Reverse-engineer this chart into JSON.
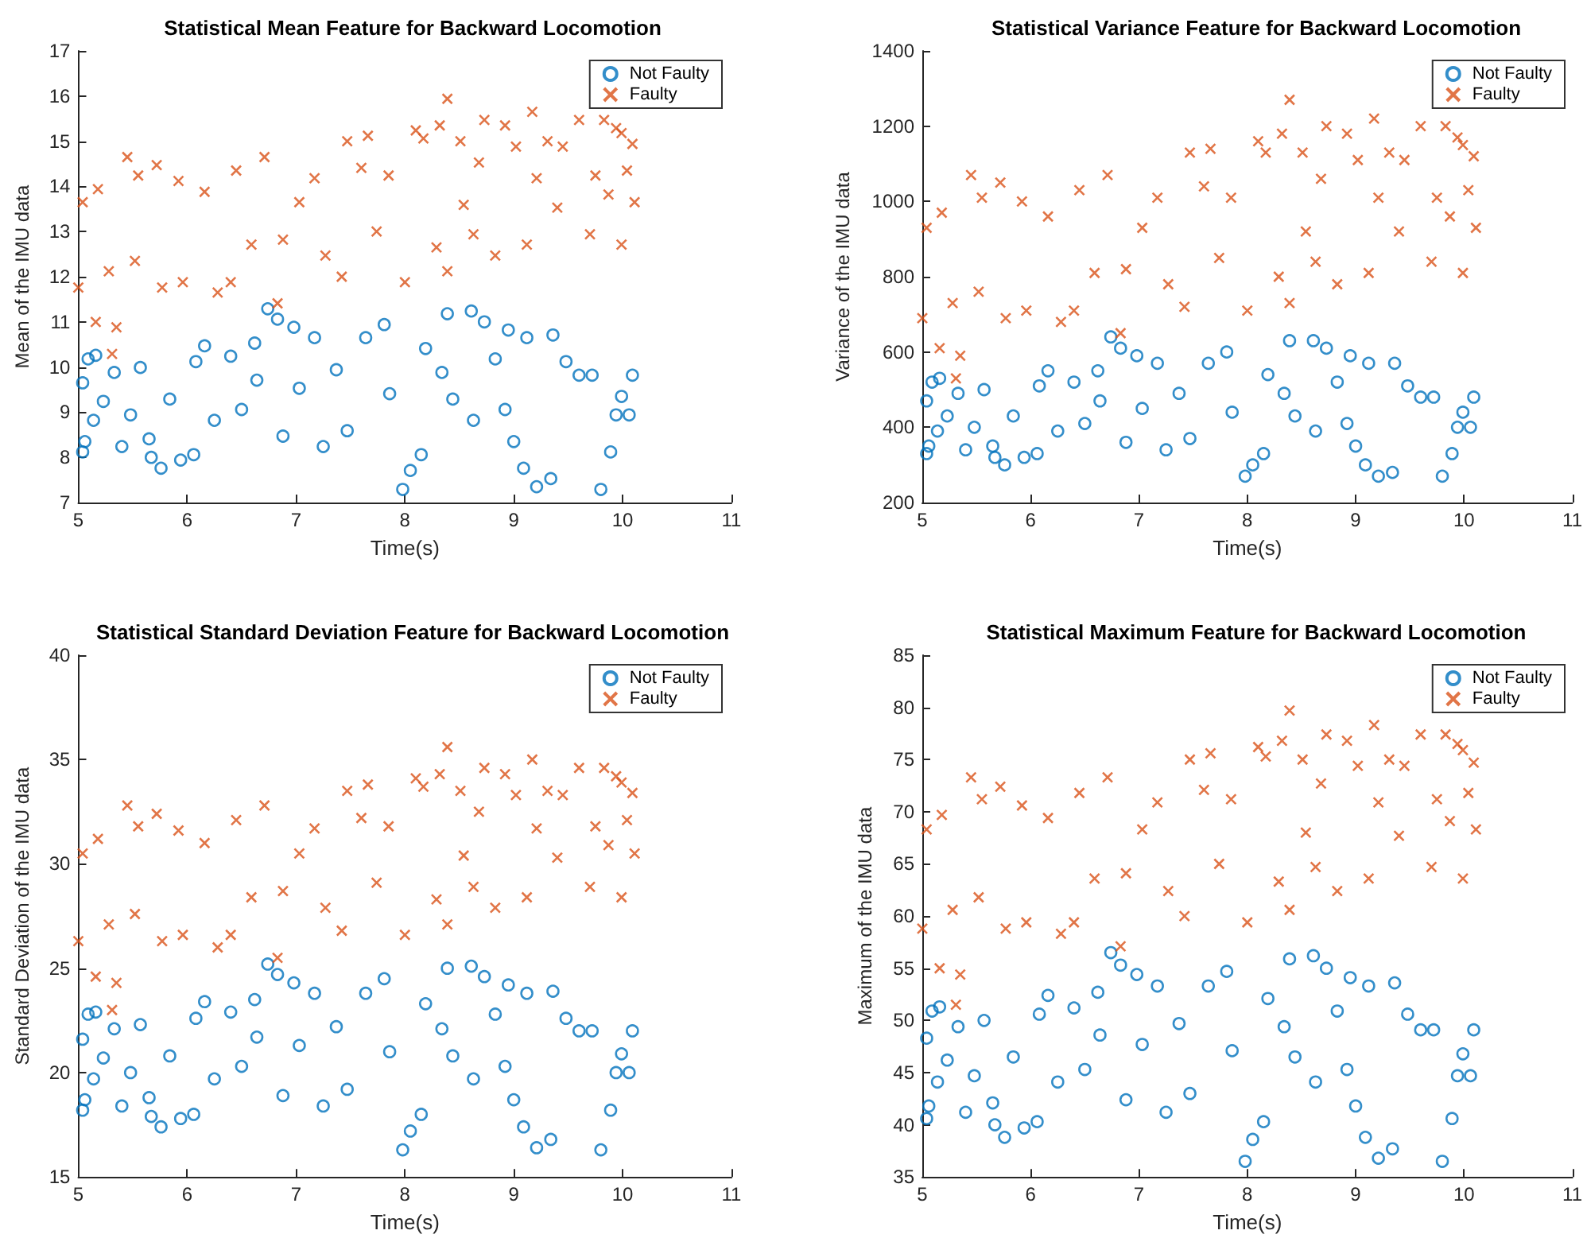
{
  "chart_data": [
    {
      "type": "scatter",
      "title": "Statistical Mean Feature for Backward Locomotion",
      "xlabel": "Time(s)",
      "ylabel": "Mean of the IMU data",
      "xlim": [
        5,
        11
      ],
      "xticks": [
        5,
        6,
        7,
        8,
        9,
        10,
        11
      ],
      "ylim": [
        7,
        17
      ],
      "yticks": [
        7,
        8,
        9,
        10,
        11,
        12,
        13,
        14,
        15,
        16,
        17
      ],
      "grid": false,
      "legend": "top right",
      "series": [
        {
          "name": "Not Faulty",
          "color": "#0072bd",
          "marker": "circle",
          "x": [
            5.04,
            5.06,
            5.09,
            5.16,
            5.04,
            5.14,
            5.23,
            5.33,
            5.4,
            5.48,
            5.57,
            5.65,
            5.67,
            5.76,
            5.84,
            5.94,
            6.06,
            6.08,
            6.16,
            6.25,
            6.4,
            6.5,
            6.62,
            6.64,
            6.74,
            6.83,
            6.88,
            6.98,
            7.03,
            7.17,
            7.25,
            7.37,
            7.47,
            7.64,
            7.81,
            7.86,
            7.98,
            8.05,
            8.15,
            8.19,
            8.34,
            8.39,
            8.44,
            8.61,
            8.73,
            8.83,
            8.95,
            9.0,
            9.09,
            9.12,
            9.21,
            9.34,
            9.36,
            9.48,
            9.6,
            9.72,
            9.8,
            9.89,
            9.94,
            10.06,
            10.09,
            9.99,
            8.63,
            8.92
          ],
          "values": [
            8.12,
            8.35,
            10.18,
            10.26,
            9.65,
            8.82,
            9.24,
            9.88,
            8.24,
            8.94,
            9.99,
            8.41,
            8.0,
            7.76,
            9.29,
            7.94,
            8.06,
            10.12,
            10.47,
            8.82,
            10.24,
            9.06,
            10.53,
            9.71,
            11.29,
            11.06,
            8.47,
            10.88,
            9.53,
            10.65,
            8.24,
            9.94,
            8.59,
            10.65,
            10.94,
            9.41,
            7.29,
            7.71,
            8.06,
            10.41,
            9.88,
            11.18,
            9.29,
            11.24,
            11.0,
            10.18,
            10.82,
            8.35,
            7.76,
            10.65,
            7.35,
            7.53,
            10.71,
            10.12,
            9.82,
            9.82,
            7.29,
            8.12,
            8.94,
            8.94,
            9.82,
            9.35,
            8.82,
            9.06
          ]
        },
        {
          "name": "Faulty",
          "color": "#d95319",
          "marker": "cross",
          "x": [
            5.0,
            5.04,
            5.18,
            5.16,
            5.31,
            5.35,
            5.28,
            5.45,
            5.52,
            5.55,
            5.72,
            5.77,
            5.92,
            5.96,
            6.16,
            6.28,
            6.4,
            6.45,
            6.59,
            6.71,
            6.83,
            6.88,
            7.03,
            7.17,
            7.27,
            7.42,
            7.47,
            7.6,
            7.66,
            7.74,
            7.85,
            8.0,
            8.1,
            8.17,
            8.29,
            8.32,
            8.39,
            8.39,
            8.51,
            8.54,
            8.63,
            8.68,
            8.73,
            8.83,
            8.92,
            9.02,
            9.12,
            9.17,
            9.21,
            9.31,
            9.4,
            9.45,
            9.6,
            9.7,
            9.75,
            9.83,
            9.87,
            9.94,
            9.99,
            10.04,
            10.09,
            10.11,
            9.99
          ],
          "values": [
            11.76,
            13.65,
            13.94,
            11.0,
            10.29,
            10.88,
            12.12,
            14.65,
            12.35,
            14.24,
            14.47,
            11.76,
            14.12,
            11.88,
            13.88,
            11.65,
            11.88,
            14.35,
            12.71,
            14.65,
            11.41,
            12.82,
            13.65,
            14.18,
            12.47,
            12.0,
            15.0,
            14.41,
            15.12,
            13.0,
            14.24,
            11.88,
            15.24,
            15.06,
            12.65,
            15.35,
            15.94,
            12.12,
            15.0,
            13.59,
            12.94,
            14.53,
            15.47,
            12.47,
            15.35,
            14.88,
            12.71,
            15.65,
            14.18,
            15.0,
            13.53,
            14.88,
            15.47,
            12.94,
            14.24,
            15.47,
            13.82,
            15.29,
            12.71,
            14.35,
            14.94,
            13.65,
            15.18
          ]
        }
      ]
    },
    {
      "type": "scatter",
      "title": "Statistical Variance Feature for Backward Locomotion",
      "xlabel": "Time(s)",
      "ylabel": "Variance of the IMU data",
      "xlim": [
        5,
        11
      ],
      "xticks": [
        5,
        6,
        7,
        8,
        9,
        10,
        11
      ],
      "ylim": [
        200,
        1400
      ],
      "yticks": [
        200,
        400,
        600,
        800,
        1000,
        1200,
        1400
      ],
      "grid": false,
      "legend": "top right",
      "series": [
        {
          "name": "Not Faulty",
          "color": "#0072bd",
          "marker": "circle",
          "x": [
            5.04,
            5.06,
            5.09,
            5.16,
            5.04,
            5.14,
            5.23,
            5.33,
            5.4,
            5.48,
            5.57,
            5.65,
            5.67,
            5.76,
            5.84,
            5.94,
            6.06,
            6.08,
            6.16,
            6.25,
            6.4,
            6.5,
            6.62,
            6.64,
            6.74,
            6.83,
            6.88,
            6.98,
            7.03,
            7.17,
            7.25,
            7.37,
            7.47,
            7.64,
            7.81,
            7.86,
            7.98,
            8.05,
            8.15,
            8.19,
            8.34,
            8.39,
            8.44,
            8.61,
            8.73,
            8.83,
            8.95,
            9.0,
            9.09,
            9.12,
            9.21,
            9.34,
            9.36,
            9.48,
            9.6,
            9.72,
            9.8,
            9.89,
            9.94,
            10.06,
            10.09,
            9.99,
            8.63,
            8.92
          ],
          "values": [
            330,
            350,
            520,
            530,
            470,
            390,
            430,
            490,
            340,
            400,
            500,
            350,
            320,
            300,
            430,
            320,
            330,
            510,
            550,
            390,
            520,
            410,
            550,
            470,
            640,
            610,
            360,
            590,
            450,
            570,
            340,
            490,
            370,
            570,
            600,
            440,
            270,
            300,
            330,
            540,
            490,
            630,
            430,
            630,
            610,
            520,
            590,
            350,
            300,
            570,
            270,
            280,
            570,
            510,
            480,
            480,
            270,
            330,
            400,
            400,
            480,
            440,
            390,
            410
          ]
        },
        {
          "name": "Faulty",
          "color": "#d95319",
          "marker": "cross",
          "x": [
            5.0,
            5.04,
            5.18,
            5.16,
            5.31,
            5.35,
            5.28,
            5.45,
            5.52,
            5.55,
            5.72,
            5.77,
            5.92,
            5.96,
            6.16,
            6.28,
            6.4,
            6.45,
            6.59,
            6.71,
            6.83,
            6.88,
            7.03,
            7.17,
            7.27,
            7.42,
            7.47,
            7.6,
            7.66,
            7.74,
            7.85,
            8.0,
            8.1,
            8.17,
            8.29,
            8.32,
            8.39,
            8.39,
            8.51,
            8.54,
            8.63,
            8.68,
            8.73,
            8.83,
            8.92,
            9.02,
            9.12,
            9.17,
            9.21,
            9.31,
            9.4,
            9.45,
            9.6,
            9.7,
            9.75,
            9.83,
            9.87,
            9.94,
            9.99,
            10.04,
            10.09,
            10.11,
            9.99
          ],
          "values": [
            690,
            930,
            970,
            610,
            530,
            590,
            730,
            1070,
            760,
            1010,
            1050,
            690,
            1000,
            710,
            960,
            680,
            710,
            1030,
            810,
            1070,
            650,
            820,
            930,
            1010,
            780,
            720,
            1130,
            1040,
            1140,
            850,
            1010,
            710,
            1160,
            1130,
            800,
            1180,
            1270,
            730,
            1130,
            920,
            840,
            1060,
            1200,
            780,
            1180,
            1110,
            810,
            1220,
            1010,
            1130,
            920,
            1110,
            1200,
            840,
            1010,
            1200,
            960,
            1170,
            810,
            1030,
            1120,
            930,
            1150
          ]
        }
      ]
    },
    {
      "type": "scatter",
      "title": "Statistical Standard Deviation Feature for Backward Locomotion",
      "xlabel": "Time(s)",
      "ylabel": "Standard Deviation of the IMU data",
      "xlim": [
        5,
        11
      ],
      "xticks": [
        5,
        6,
        7,
        8,
        9,
        10,
        11
      ],
      "ylim": [
        15,
        40
      ],
      "yticks": [
        15,
        20,
        25,
        30,
        35,
        40
      ],
      "grid": false,
      "legend": "top right",
      "series": [
        {
          "name": "Not Faulty",
          "color": "#0072bd",
          "marker": "circle",
          "x": [
            5.04,
            5.06,
            5.09,
            5.16,
            5.04,
            5.14,
            5.23,
            5.33,
            5.4,
            5.48,
            5.57,
            5.65,
            5.67,
            5.76,
            5.84,
            5.94,
            6.06,
            6.08,
            6.16,
            6.25,
            6.4,
            6.5,
            6.62,
            6.64,
            6.74,
            6.83,
            6.88,
            6.98,
            7.03,
            7.17,
            7.25,
            7.37,
            7.47,
            7.64,
            7.81,
            7.86,
            7.98,
            8.05,
            8.15,
            8.19,
            8.34,
            8.39,
            8.44,
            8.61,
            8.73,
            8.83,
            8.95,
            9.0,
            9.09,
            9.12,
            9.21,
            9.34,
            9.36,
            9.48,
            9.6,
            9.72,
            9.8,
            9.89,
            9.94,
            10.06,
            10.09,
            9.99,
            8.63,
            8.92
          ],
          "values": [
            18.2,
            18.7,
            22.8,
            22.9,
            21.6,
            19.7,
            20.7,
            22.1,
            18.4,
            20.0,
            22.3,
            18.8,
            17.9,
            17.4,
            20.8,
            17.8,
            18.0,
            22.6,
            23.4,
            19.7,
            22.9,
            20.3,
            23.5,
            21.7,
            25.2,
            24.7,
            18.9,
            24.3,
            21.3,
            23.8,
            18.4,
            22.2,
            19.2,
            23.8,
            24.5,
            21.0,
            16.3,
            17.2,
            18.0,
            23.3,
            22.1,
            25.0,
            20.8,
            25.1,
            24.6,
            22.8,
            24.2,
            18.7,
            17.4,
            23.8,
            16.4,
            16.8,
            23.9,
            22.6,
            22.0,
            22.0,
            16.3,
            18.2,
            20.0,
            20.0,
            22.0,
            20.9,
            19.7,
            20.3
          ]
        },
        {
          "name": "Faulty",
          "color": "#d95319",
          "marker": "cross",
          "x": [
            5.0,
            5.04,
            5.18,
            5.16,
            5.31,
            5.35,
            5.28,
            5.45,
            5.52,
            5.55,
            5.72,
            5.77,
            5.92,
            5.96,
            6.16,
            6.28,
            6.4,
            6.45,
            6.59,
            6.71,
            6.83,
            6.88,
            7.03,
            7.17,
            7.27,
            7.42,
            7.47,
            7.6,
            7.66,
            7.74,
            7.85,
            8.0,
            8.1,
            8.17,
            8.29,
            8.32,
            8.39,
            8.39,
            8.51,
            8.54,
            8.63,
            8.68,
            8.73,
            8.83,
            8.92,
            9.02,
            9.12,
            9.17,
            9.21,
            9.31,
            9.4,
            9.45,
            9.6,
            9.7,
            9.75,
            9.83,
            9.87,
            9.94,
            9.99,
            10.04,
            10.09,
            10.11,
            9.99
          ],
          "values": [
            26.3,
            30.5,
            31.2,
            24.6,
            23.0,
            24.3,
            27.1,
            32.8,
            27.6,
            31.8,
            32.4,
            26.3,
            31.6,
            26.6,
            31.0,
            26.0,
            26.6,
            32.1,
            28.4,
            32.8,
            25.5,
            28.7,
            30.5,
            31.7,
            27.9,
            26.8,
            33.5,
            32.2,
            33.8,
            29.1,
            31.8,
            26.6,
            34.1,
            33.7,
            28.3,
            34.3,
            35.6,
            27.1,
            33.5,
            30.4,
            28.9,
            32.5,
            34.6,
            27.9,
            34.3,
            33.3,
            28.4,
            35.0,
            31.7,
            33.5,
            30.3,
            33.3,
            34.6,
            28.9,
            31.8,
            34.6,
            30.9,
            34.2,
            28.4,
            32.1,
            33.4,
            30.5,
            33.9
          ]
        }
      ]
    },
    {
      "type": "scatter",
      "title": "Statistical Maximum Feature for Backward Locomotion",
      "xlabel": "Time(s)",
      "ylabel": "Maximum of the IMU data",
      "xlim": [
        5,
        11
      ],
      "xticks": [
        5,
        6,
        7,
        8,
        9,
        10,
        11
      ],
      "ylim": [
        35,
        85
      ],
      "yticks": [
        35,
        40,
        45,
        50,
        55,
        60,
        65,
        70,
        75,
        80,
        85
      ],
      "grid": false,
      "legend": "top right",
      "series": [
        {
          "name": "Not Faulty",
          "color": "#0072bd",
          "marker": "circle",
          "x": [
            5.04,
            5.06,
            5.09,
            5.16,
            5.04,
            5.14,
            5.23,
            5.33,
            5.4,
            5.48,
            5.57,
            5.65,
            5.67,
            5.76,
            5.84,
            5.94,
            6.06,
            6.08,
            6.16,
            6.25,
            6.4,
            6.5,
            6.62,
            6.64,
            6.74,
            6.83,
            6.88,
            6.98,
            7.03,
            7.17,
            7.25,
            7.37,
            7.47,
            7.64,
            7.81,
            7.86,
            7.98,
            8.05,
            8.15,
            8.19,
            8.34,
            8.39,
            8.44,
            8.61,
            8.73,
            8.83,
            8.95,
            9.0,
            9.09,
            9.12,
            9.21,
            9.34,
            9.36,
            9.48,
            9.6,
            9.72,
            9.8,
            9.89,
            9.94,
            10.06,
            10.09,
            9.99,
            8.63,
            8.92
          ],
          "values": [
            40.6,
            41.8,
            50.9,
            51.3,
            48.3,
            44.1,
            46.2,
            49.4,
            41.2,
            44.7,
            50.0,
            42.1,
            40.0,
            38.8,
            46.5,
            39.7,
            40.3,
            50.6,
            52.4,
            44.1,
            51.2,
            45.3,
            52.7,
            48.6,
            56.5,
            55.3,
            42.4,
            54.4,
            47.7,
            53.3,
            41.2,
            49.7,
            43.0,
            53.3,
            54.7,
            47.1,
            36.5,
            38.6,
            40.3,
            52.1,
            49.4,
            55.9,
            46.5,
            56.2,
            55.0,
            50.9,
            54.1,
            41.8,
            38.8,
            53.3,
            36.8,
            37.7,
            53.6,
            50.6,
            49.1,
            49.1,
            36.5,
            40.6,
            44.7,
            44.7,
            49.1,
            46.8,
            44.1,
            45.3
          ]
        },
        {
          "name": "Faulty",
          "color": "#d95319",
          "marker": "cross",
          "x": [
            5.0,
            5.04,
            5.18,
            5.16,
            5.31,
            5.35,
            5.28,
            5.45,
            5.52,
            5.55,
            5.72,
            5.77,
            5.92,
            5.96,
            6.16,
            6.28,
            6.4,
            6.45,
            6.59,
            6.71,
            6.83,
            6.88,
            7.03,
            7.17,
            7.27,
            7.42,
            7.47,
            7.6,
            7.66,
            7.74,
            7.85,
            8.0,
            8.1,
            8.17,
            8.29,
            8.32,
            8.39,
            8.39,
            8.51,
            8.54,
            8.63,
            8.68,
            8.73,
            8.83,
            8.92,
            9.02,
            9.12,
            9.17,
            9.21,
            9.31,
            9.4,
            9.45,
            9.6,
            9.7,
            9.75,
            9.83,
            9.87,
            9.94,
            9.99,
            10.04,
            10.09,
            10.11,
            9.99
          ],
          "values": [
            58.8,
            68.3,
            69.7,
            55.0,
            51.5,
            54.4,
            60.6,
            73.3,
            61.8,
            71.2,
            72.4,
            58.8,
            70.6,
            59.4,
            69.4,
            58.3,
            59.4,
            71.8,
            63.6,
            73.3,
            57.1,
            64.1,
            68.3,
            70.9,
            62.4,
            60.0,
            75.0,
            72.1,
            75.6,
            65.0,
            71.2,
            59.4,
            76.2,
            75.3,
            63.3,
            76.8,
            79.7,
            60.6,
            75.0,
            68.0,
            64.7,
            72.7,
            77.4,
            62.4,
            76.8,
            74.4,
            63.6,
            78.3,
            70.9,
            75.0,
            67.7,
            74.4,
            77.4,
            64.7,
            71.2,
            77.4,
            69.1,
            76.5,
            63.6,
            71.8,
            74.7,
            68.3,
            75.9
          ]
        }
      ]
    }
  ]
}
